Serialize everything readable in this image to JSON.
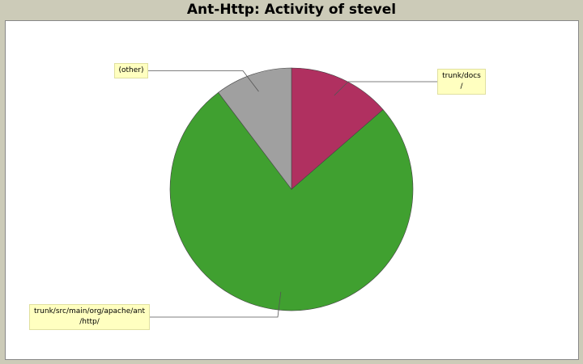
{
  "chart_data": {
    "type": "pie",
    "title": "Ant-Http: Activity of stevel",
    "categories": [
      "trunk/docs/",
      "trunk/src/main/org/apache/ant/http/",
      "(other)"
    ],
    "values": [
      13.6,
      76.1,
      10.3
    ],
    "colors": [
      "#b03060",
      "#40a030",
      "#a0a0a0"
    ]
  }
}
